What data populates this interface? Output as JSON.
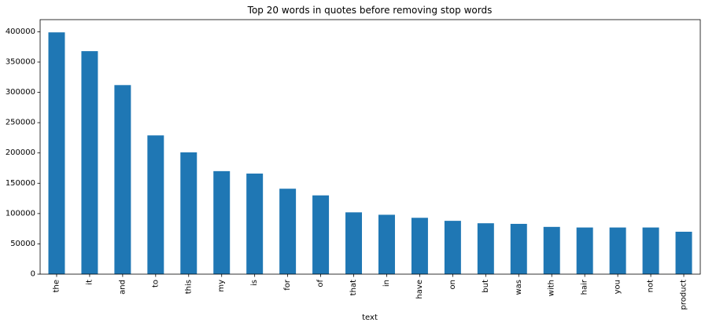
{
  "chart_data": {
    "type": "bar",
    "title": "Top 20 words in quotes before removing stop words",
    "xlabel": "text",
    "ylabel": "",
    "categories": [
      "the",
      "it",
      "and",
      "to",
      "this",
      "my",
      "is",
      "for",
      "of",
      "that",
      "in",
      "have",
      "on",
      "but",
      "was",
      "with",
      "hair",
      "you",
      "not",
      "product"
    ],
    "values": [
      399000,
      368000,
      312000,
      229000,
      201000,
      170000,
      166000,
      141000,
      130000,
      102000,
      98000,
      93000,
      88000,
      84000,
      83000,
      78000,
      77000,
      77000,
      77000,
      70000
    ],
    "ylim": [
      0,
      420000
    ],
    "yticks": [
      0,
      50000,
      100000,
      150000,
      200000,
      250000,
      300000,
      350000,
      400000
    ],
    "bar_color": "#1f77b4",
    "grid": false,
    "legend": "none"
  }
}
